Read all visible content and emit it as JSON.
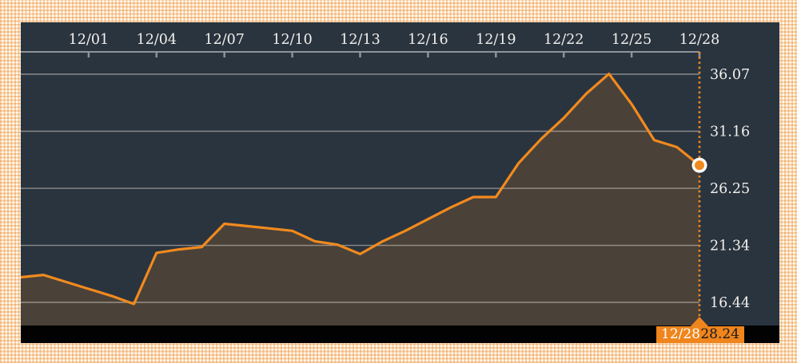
{
  "chart_data": {
    "type": "area",
    "title": "",
    "xlabel": "",
    "ylabel": "",
    "grid": true,
    "legend_position": "none",
    "x": [
      "11/28",
      "11/29",
      "11/30",
      "12/01",
      "12/02",
      "12/03",
      "12/04",
      "12/05",
      "12/06",
      "12/07",
      "12/08",
      "12/09",
      "12/10",
      "12/11",
      "12/12",
      "12/13",
      "12/14",
      "12/15",
      "12/16",
      "12/17",
      "12/18",
      "12/19",
      "12/20",
      "12/21",
      "12/22",
      "12/23",
      "12/24",
      "12/25",
      "12/26",
      "12/27",
      "12/28"
    ],
    "values": [
      18.6,
      18.8,
      18.2,
      17.6,
      17.0,
      16.3,
      20.7,
      21.0,
      21.2,
      23.2,
      23.0,
      22.8,
      22.6,
      21.7,
      21.4,
      20.6,
      21.7,
      22.6,
      23.6,
      24.6,
      25.5,
      25.5,
      28.4,
      30.5,
      32.3,
      34.4,
      36.1,
      33.5,
      30.4,
      29.8,
      28.24
    ],
    "x_tick_labels": [
      "12/01",
      "12/04",
      "12/07",
      "12/10",
      "12/13",
      "12/16",
      "12/19",
      "12/22",
      "12/25",
      "12/28"
    ],
    "y_tick_labels": [
      "36.07",
      "31.16",
      "26.25",
      "21.34",
      "16.44"
    ],
    "ylim": [
      14.5,
      38.0
    ],
    "cursor": {
      "date": "12/28",
      "value": "28.24"
    },
    "colors": {
      "line": "#f18a1e",
      "area_fill": "#f18a1e",
      "background": "#2a343f",
      "grid_line": "#e8e2d6",
      "axis_line": "#8d939b",
      "label_text": "#f2f0ec",
      "tag_background": "#ef851c",
      "tag_date_text": "#ffffff",
      "tag_value_text": "#16191d",
      "bottom_bar": "#020202",
      "marker_ring": "#ffffff"
    }
  }
}
